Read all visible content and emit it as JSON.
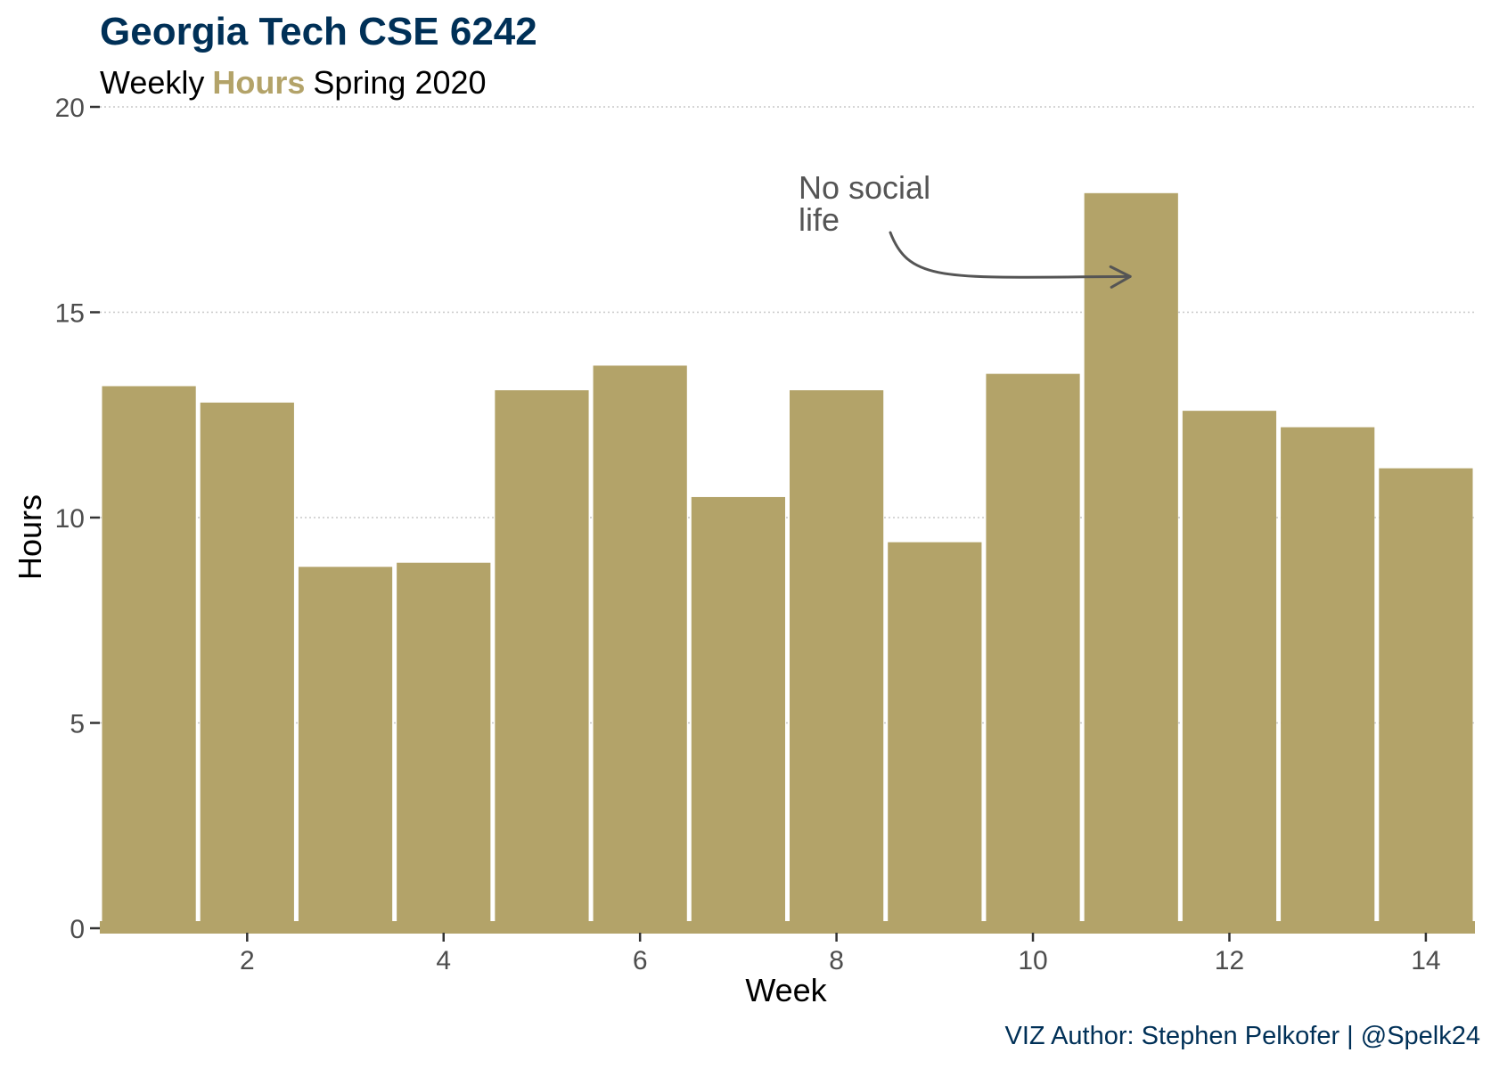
{
  "chart_data": {
    "type": "bar",
    "title": "Georgia Tech CSE 6242",
    "subtitle_parts": [
      {
        "text": "Weekly",
        "highlight": false
      },
      {
        "text": "Hours",
        "highlight": true
      },
      {
        "text": "Spring 2020",
        "highlight": false
      }
    ],
    "xlabel": "Week",
    "ylabel": "Hours",
    "x": [
      1,
      2,
      3,
      4,
      5,
      6,
      7,
      8,
      9,
      10,
      11,
      12,
      13,
      14
    ],
    "values": [
      13.2,
      12.8,
      8.8,
      8.9,
      13.1,
      13.7,
      10.5,
      13.1,
      9.4,
      13.5,
      17.9,
      12.6,
      12.2,
      11.2
    ],
    "xlim": [
      0.5,
      14.5
    ],
    "ylim": [
      0,
      20
    ],
    "xticks": [
      2,
      4,
      6,
      8,
      10,
      12,
      14
    ],
    "yticks": [
      0,
      5,
      10,
      15,
      20
    ],
    "grid": "horizontal-dotted",
    "annotation": {
      "lines": [
        "No social",
        "life"
      ],
      "x": 10.5,
      "y": 15.7,
      "target_x": 10.5,
      "target_y": 16.0
    },
    "caption": "VIZ Author: Stephen Pelkofer | @Spelk24",
    "colors": {
      "bar": "#B3A369",
      "title": "#003057",
      "highlight": "#B3A369",
      "caption": "#003057",
      "axis_text": "#4d4d4d",
      "grid": "#c8c8c8",
      "annotation": "#555555"
    }
  }
}
